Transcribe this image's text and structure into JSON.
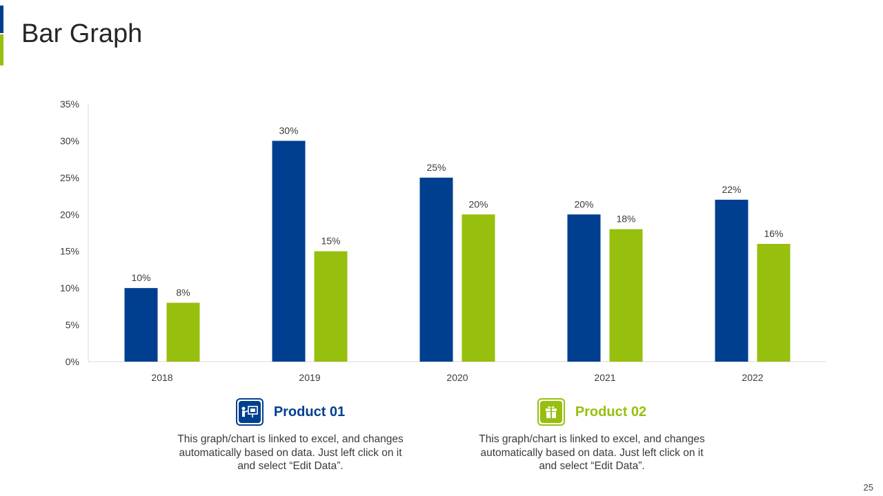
{
  "title": "Bar Graph",
  "colors": {
    "accent_blue": "#003f8f",
    "accent_green": "#97bf0d"
  },
  "chart_data": {
    "type": "bar",
    "categories": [
      "2018",
      "2019",
      "2020",
      "2021",
      "2022"
    ],
    "series": [
      {
        "name": "Product 01",
        "color": "#003f8f",
        "values": [
          10,
          30,
          25,
          20,
          22
        ],
        "labels": [
          "10%",
          "30%",
          "25%",
          "20%",
          "22%"
        ]
      },
      {
        "name": "Product 02",
        "color": "#97bf0d",
        "values": [
          8,
          15,
          20,
          18,
          16
        ],
        "labels": [
          "8%",
          "15%",
          "20%",
          "18%",
          "16%"
        ]
      }
    ],
    "ylim": [
      0,
      35
    ],
    "yticks": [
      0,
      5,
      10,
      15,
      20,
      25,
      30,
      35
    ],
    "ytick_labels": [
      "0%",
      "5%",
      "10%",
      "15%",
      "20%",
      "25%",
      "30%",
      "35%"
    ],
    "xlabel": "",
    "ylabel": "",
    "grid": false
  },
  "legend": [
    {
      "title": "Product 01",
      "icon": "presentation-board-icon",
      "description": "This graph/chart is linked to excel, and changes automatically based on data. Just left click on it and select “Edit Data”."
    },
    {
      "title": "Product 02",
      "icon": "gift-box-icon",
      "description": "This graph/chart is linked to excel, and changes automatically based on data. Just left click on it and select “Edit Data”."
    }
  ],
  "page_number": "25"
}
